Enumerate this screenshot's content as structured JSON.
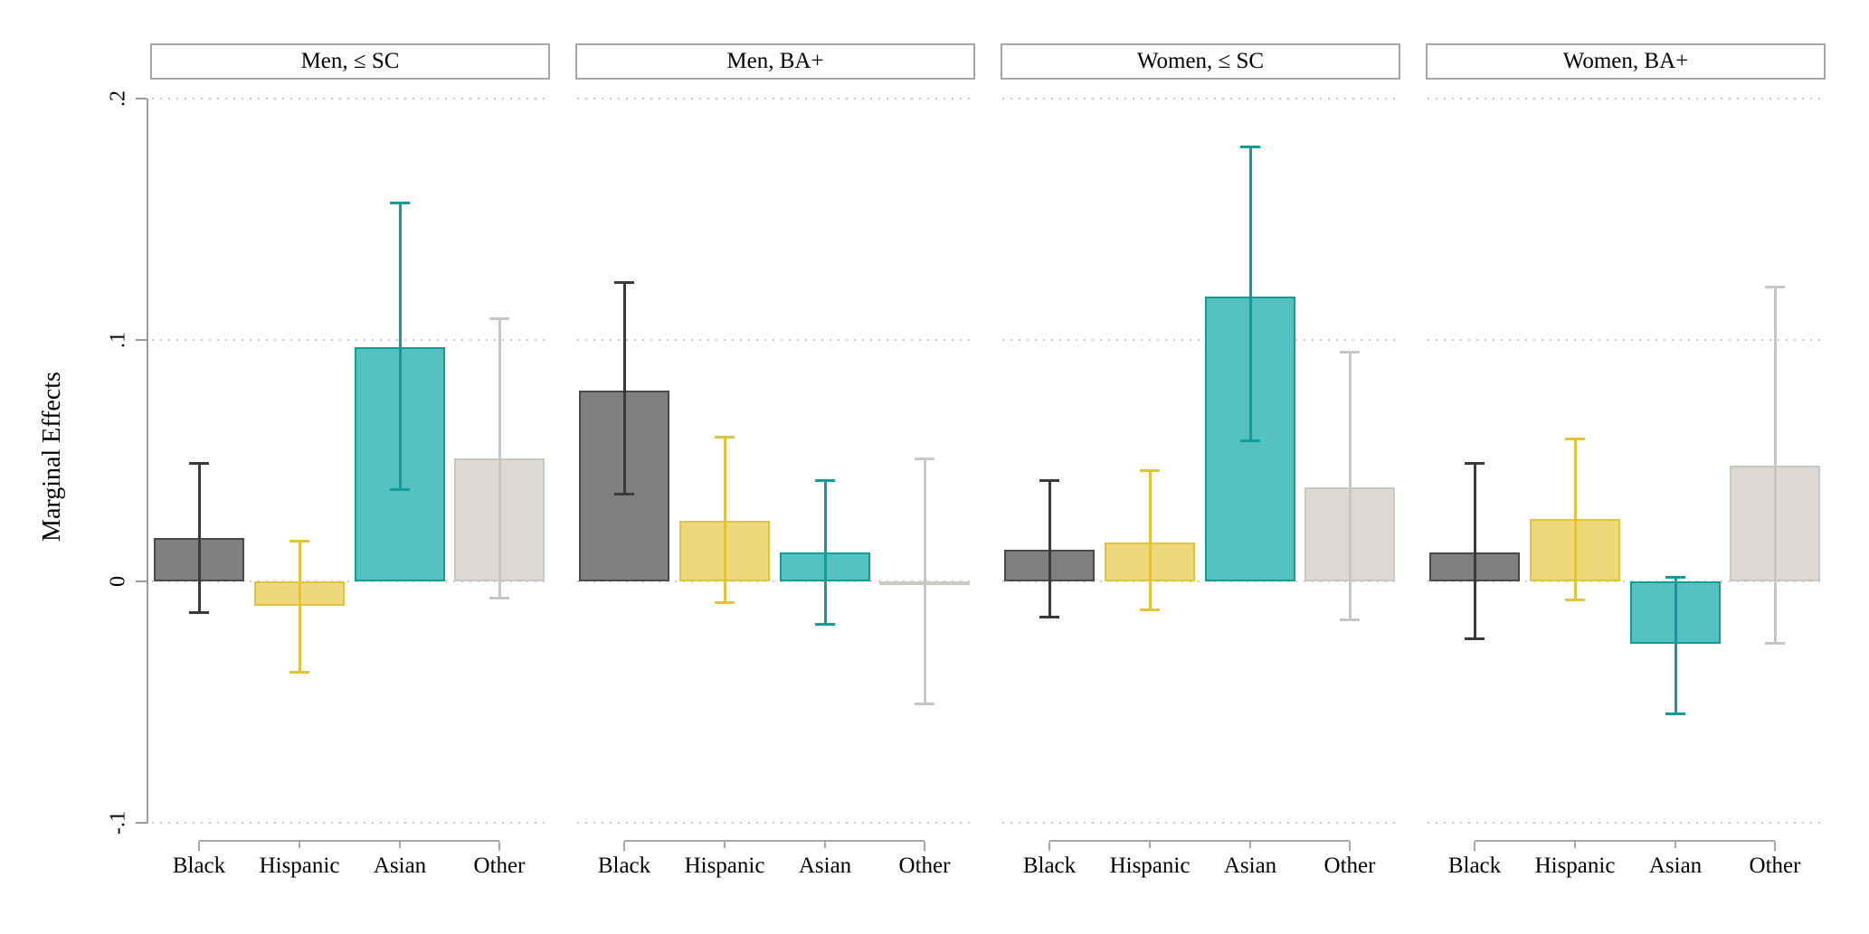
{
  "chart_data": {
    "type": "bar",
    "title": "",
    "ylabel": "Marginal Effects",
    "xlabel": "",
    "ylim": [
      -0.1,
      0.2
    ],
    "yticks": [
      0.2,
      0.1,
      0,
      -0.1
    ],
    "ytick_labels": [
      ".2",
      ".1",
      "0",
      "-.1"
    ],
    "grid": "dotted horizontal gridlines at each y tick, per panel",
    "legend": "none",
    "categories": [
      "Black",
      "Hispanic",
      "Asian",
      "Other"
    ],
    "error_bars": "95% confidence intervals with end caps",
    "panels": [
      {
        "title": "Men, ≤ SC",
        "bars": [
          {
            "category": "Black",
            "value": 0.018,
            "ci_low": -0.013,
            "ci_high": 0.049
          },
          {
            "category": "Hispanic",
            "value": -0.01,
            "ci_low": -0.038,
            "ci_high": 0.017
          },
          {
            "category": "Asian",
            "value": 0.097,
            "ci_low": 0.038,
            "ci_high": 0.157
          },
          {
            "category": "Other",
            "value": 0.051,
            "ci_low": -0.007,
            "ci_high": 0.109
          }
        ]
      },
      {
        "title": "Men, BA+",
        "bars": [
          {
            "category": "Black",
            "value": 0.079,
            "ci_low": 0.036,
            "ci_high": 0.124
          },
          {
            "category": "Hispanic",
            "value": 0.025,
            "ci_low": -0.009,
            "ci_high": 0.06
          },
          {
            "category": "Asian",
            "value": 0.012,
            "ci_low": -0.018,
            "ci_high": 0.042
          },
          {
            "category": "Other",
            "value": -0.001,
            "ci_low": -0.051,
            "ci_high": 0.051
          }
        ]
      },
      {
        "title": "Women, ≤ SC",
        "bars": [
          {
            "category": "Black",
            "value": 0.013,
            "ci_low": -0.015,
            "ci_high": 0.042
          },
          {
            "category": "Hispanic",
            "value": 0.016,
            "ci_low": -0.012,
            "ci_high": 0.046
          },
          {
            "category": "Asian",
            "value": 0.118,
            "ci_low": 0.058,
            "ci_high": 0.18
          },
          {
            "category": "Other",
            "value": 0.039,
            "ci_low": -0.016,
            "ci_high": 0.095
          }
        ]
      },
      {
        "title": "Women, BA+",
        "bars": [
          {
            "category": "Black",
            "value": 0.012,
            "ci_low": -0.024,
            "ci_high": 0.049
          },
          {
            "category": "Hispanic",
            "value": 0.026,
            "ci_low": -0.008,
            "ci_high": 0.059
          },
          {
            "category": "Asian",
            "value": -0.026,
            "ci_low": -0.055,
            "ci_high": 0.002
          },
          {
            "category": "Other",
            "value": 0.048,
            "ci_low": -0.026,
            "ci_high": 0.122
          }
        ]
      }
    ],
    "bar_styles": [
      {
        "category": "Black",
        "fill": "#7f7f7f",
        "stroke": "#4a4a4a",
        "error_color": "#3a3a3a"
      },
      {
        "category": "Hispanic",
        "fill": "#eed87c",
        "stroke": "#e2c33c",
        "error_color": "#e2c33c"
      },
      {
        "category": "Asian",
        "fill": "#55c1c0",
        "stroke": "#0f9c9a",
        "error_color": "#0f9c9a"
      },
      {
        "category": "Other",
        "fill": "#dcd8d4",
        "stroke": "#cbc7c3",
        "error_color": "#c9c5c1"
      }
    ],
    "colors": {
      "gridline": "#c9c9c9",
      "axis": "#9b9b9b",
      "panel_border": "#a6a6a6",
      "text": "#000000",
      "background": "#ffffff"
    }
  }
}
